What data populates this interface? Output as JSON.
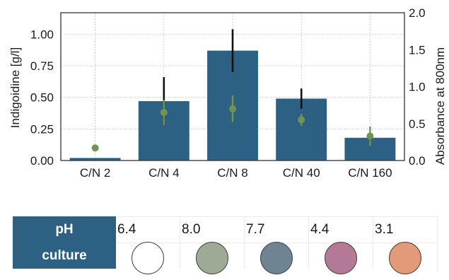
{
  "chart_data": {
    "type": "bar",
    "categories": [
      "C/N 2",
      "C/N 4",
      "C/N 8",
      "C/N 40",
      "C/N 160"
    ],
    "series": [
      {
        "axis": "left",
        "kind": "bar",
        "values": [
          0.02,
          0.47,
          0.87,
          0.49,
          0.18
        ],
        "error": [
          0.0,
          0.19,
          0.17,
          0.08,
          0.03
        ],
        "color": "#2c6183"
      },
      {
        "axis": "right",
        "kind": "point",
        "values": [
          0.17,
          0.65,
          0.7,
          0.55,
          0.33
        ],
        "error": [
          0.0,
          0.17,
          0.18,
          0.08,
          0.13
        ],
        "color": "#6f944f"
      }
    ],
    "ylabel": "Indigoidine [g/l]",
    "y2label": "Absorbance at 800nm",
    "ylim": [
      0,
      1.17
    ],
    "y2lim": [
      0,
      2.0
    ],
    "yticks": [
      "0.00",
      "0.25",
      "0.50",
      "0.75",
      "1.00"
    ],
    "y2ticks": [
      "0.0",
      "0.5",
      "1.0",
      "1.5",
      "2.0"
    ],
    "grid": true
  },
  "table": {
    "ph_label": "pH",
    "culture_label": "culture",
    "ph_values": [
      "6.4",
      "8.0",
      "7.7",
      "4.4",
      "3.1"
    ],
    "culture_colors": [
      "#ffffff",
      "#9eaa96",
      "#6f8492",
      "#b47a95",
      "#e29a78"
    ]
  }
}
